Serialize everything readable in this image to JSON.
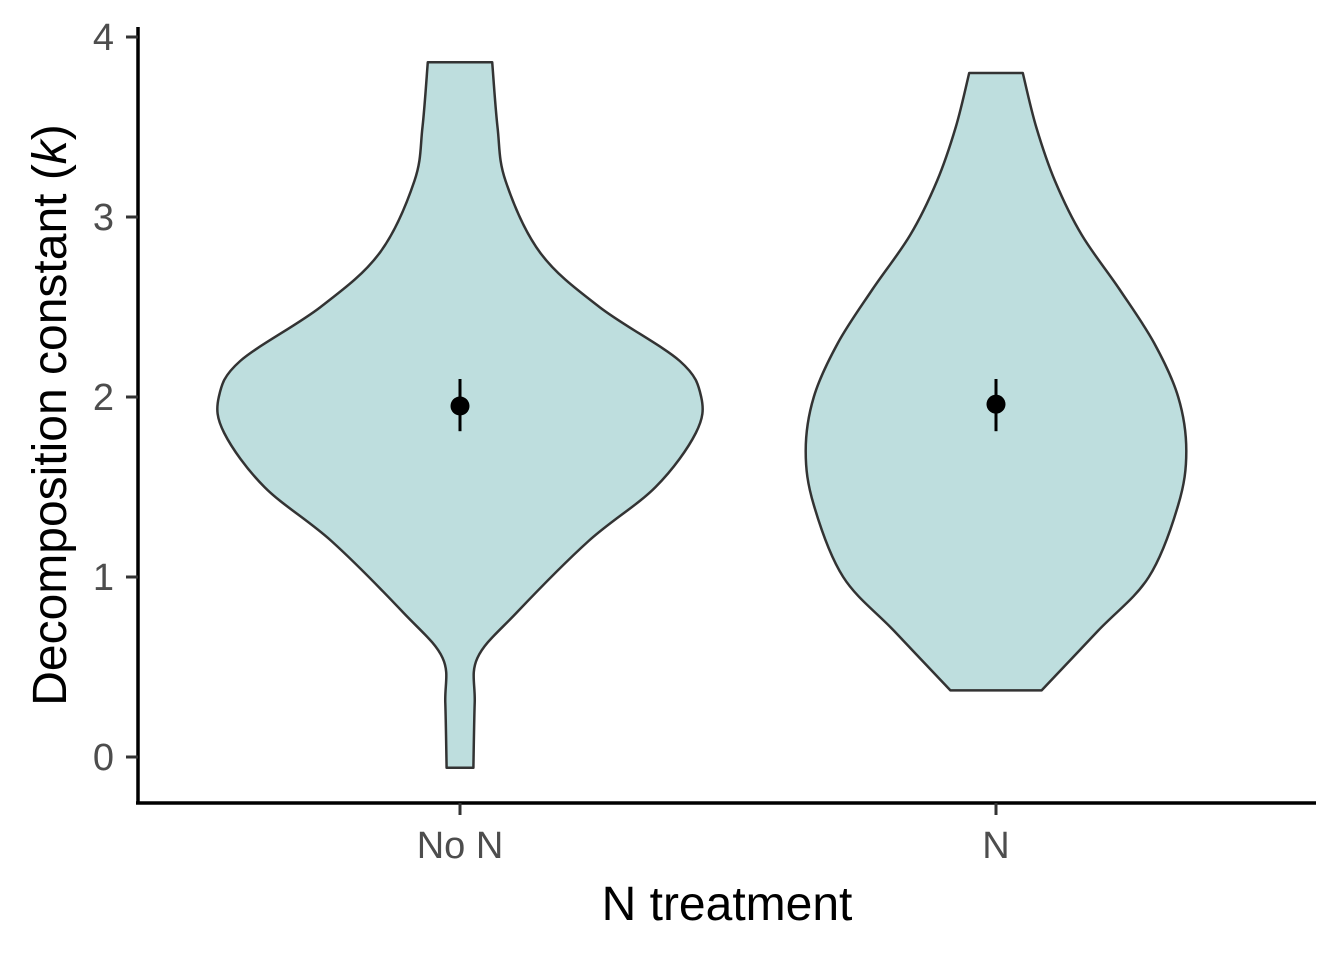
{
  "chart_data": {
    "type": "violin",
    "xlabel": "N treatment",
    "ylabel_prefix": "Decomposition constant (",
    "ylabel_var": "k",
    "ylabel_suffix": ")",
    "categories": [
      "No N",
      "N"
    ],
    "ylim": [
      -0.25,
      4.05
    ],
    "yticks": [
      0,
      1,
      2,
      3,
      4
    ],
    "fill_color": "#bedede",
    "outline_color": "#333333",
    "grid": false,
    "violins": [
      {
        "category": "No N",
        "mean": 1.95,
        "error_low": 1.81,
        "error_high": 2.1,
        "profile": [
          [
            -0.06,
            0.05
          ],
          [
            0.3,
            0.055
          ],
          [
            0.55,
            0.065
          ],
          [
            0.8,
            0.21
          ],
          [
            1.2,
            0.48
          ],
          [
            1.5,
            0.73
          ],
          [
            1.8,
            0.88
          ],
          [
            2.0,
            0.9
          ],
          [
            2.2,
            0.82
          ],
          [
            2.5,
            0.52
          ],
          [
            2.8,
            0.3
          ],
          [
            3.2,
            0.17
          ],
          [
            3.5,
            0.14
          ],
          [
            3.86,
            0.12
          ]
        ]
      },
      {
        "category": "N",
        "mean": 1.96,
        "error_low": 1.81,
        "error_high": 2.1,
        "profile": [
          [
            0.37,
            0.17
          ],
          [
            0.7,
            0.38
          ],
          [
            1.0,
            0.57
          ],
          [
            1.4,
            0.68
          ],
          [
            1.7,
            0.71
          ],
          [
            2.0,
            0.68
          ],
          [
            2.3,
            0.59
          ],
          [
            2.6,
            0.46
          ],
          [
            2.9,
            0.32
          ],
          [
            3.2,
            0.22
          ],
          [
            3.5,
            0.15
          ],
          [
            3.8,
            0.1
          ]
        ]
      }
    ]
  }
}
